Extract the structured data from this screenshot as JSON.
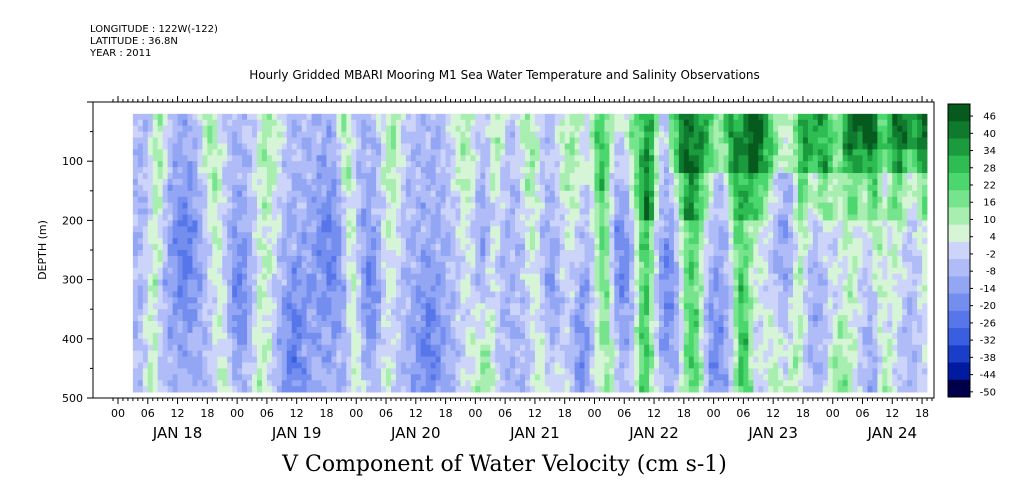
{
  "header": {
    "longitude": "LONGITUDE : 122W(-122)",
    "latitude": "LATITUDE : 36.8N",
    "year": "YEAR : 2011"
  },
  "chart_data": {
    "type": "heatmap",
    "title": "Hourly Gridded MBARI Mooring M1 Sea Water Temperature and Salinity Observations",
    "variable_title": "V Component of Water Velocity (cm s-1)",
    "ylabel": "DEPTH (m)",
    "xlabel": "",
    "y_reversed": true,
    "ylim": [
      500,
      0
    ],
    "y_ticks": [
      100,
      200,
      300,
      400,
      500
    ],
    "data_depth_range": [
      20,
      490
    ],
    "data_time_range_hours": [
      3,
      163
    ],
    "x_hour_ticks": [
      "00",
      "06",
      "12",
      "18",
      "00",
      "06",
      "12",
      "18",
      "00",
      "06",
      "12",
      "18",
      "00",
      "06",
      "12",
      "18",
      "00",
      "06",
      "12",
      "18",
      "00",
      "06",
      "12",
      "18",
      "00",
      "06",
      "12",
      "18"
    ],
    "day_labels": [
      "JAN 18",
      "JAN 19",
      "JAN 20",
      "JAN 21",
      "JAN 22",
      "JAN 23",
      "JAN 24"
    ],
    "colorbar": {
      "levels": [
        -50,
        -44,
        -38,
        -32,
        -26,
        -20,
        -14,
        -8,
        -2,
        4,
        10,
        16,
        22,
        28,
        34,
        40,
        46
      ],
      "labels": [
        "46",
        "40",
        "34",
        "28",
        "22",
        "16",
        "10",
        "4",
        "-2",
        "-8",
        "-14",
        "-20",
        "-26",
        "-32",
        "-38",
        "-44",
        "-50"
      ],
      "colors": [
        "#00004a",
        "#001aa0",
        "#1a3ec8",
        "#3a5ee0",
        "#5676ea",
        "#748ef0",
        "#92a6f4",
        "#b0bcf8",
        "#ccd4fa",
        "#d6f5d6",
        "#a8eeb0",
        "#76e48c",
        "#4cd66e",
        "#2ebd52",
        "#1c9a3e",
        "#0f7a2e",
        "#065a1e"
      ]
    },
    "green_streaks_hours": [
      8,
      18,
      30,
      45,
      55,
      69,
      76,
      82,
      91,
      96,
      98,
      104,
      107,
      113,
      117,
      123,
      127,
      129,
      138,
      141,
      148,
      151,
      157,
      162
    ],
    "blue_cores_hours": [
      13,
      24,
      35,
      42,
      51,
      62,
      73,
      87,
      93,
      101,
      110,
      119,
      132,
      143,
      154
    ]
  }
}
